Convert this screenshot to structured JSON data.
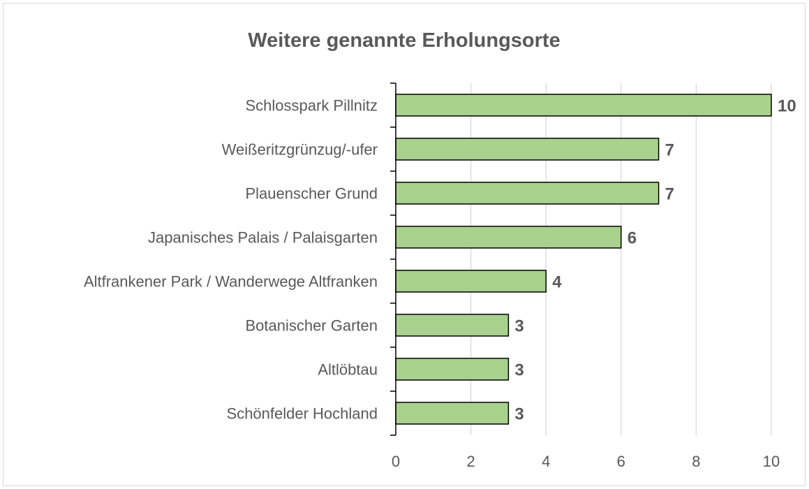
{
  "chart_data": {
    "type": "bar",
    "orientation": "horizontal",
    "title": "Weitere genannte Erholungsorte",
    "categories": [
      "Schlosspark Pillnitz",
      "Weißeritzgrünzug/-ufer",
      "Plauenscher Grund",
      "Japanisches Palais / Palaisgarten",
      "Altfrankener Park / Wanderwege Altfranken",
      "Botanischer Garten",
      "Altlöbtau",
      "Schönfelder Hochland"
    ],
    "values": [
      10,
      7,
      7,
      6,
      4,
      3,
      3,
      3
    ],
    "value_labels": [
      "10",
      "7",
      "7",
      "6",
      "4",
      "3",
      "3",
      "3"
    ],
    "xticks": [
      0,
      2,
      4,
      6,
      8,
      10
    ],
    "xtick_labels": [
      "0",
      "2",
      "4",
      "6",
      "8",
      "10"
    ],
    "xlim": [
      0,
      10
    ],
    "grid": "vertical",
    "legend": "none",
    "colors": {
      "bar_fill": "#a9d18e",
      "bar_stroke": "#000000",
      "text": "#595959",
      "grid": "#d9d9d9",
      "axis": "#000000"
    }
  }
}
